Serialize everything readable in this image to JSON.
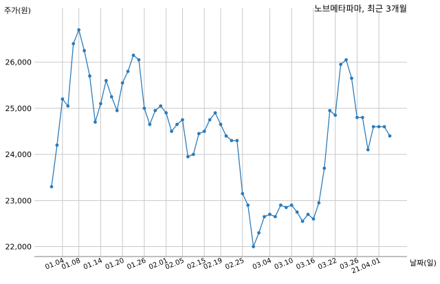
{
  "chart_data": {
    "type": "line",
    "title": "노브메타파마, 최근 3개월",
    "xlabel": "날짜(일)",
    "ylabel": "주가(원)",
    "ylim": [
      21800,
      27050
    ],
    "yticks": [
      22000,
      23000,
      24000,
      25000,
      26000
    ],
    "ytick_labels": [
      "22,000",
      "23,000",
      "24,000",
      "25,000",
      "26,000"
    ],
    "x_tick_labels": [
      "01.04",
      "01.08",
      "01.14",
      "01.20",
      "01.26",
      "02.01",
      "02.05",
      "02.15",
      "02.19",
      "02.25",
      "03.04",
      "03.10",
      "03.16",
      "03.22",
      "03.26",
      "21.04.01"
    ],
    "x_tick_index": [
      2,
      5,
      9,
      13,
      17,
      21,
      24,
      28,
      31,
      35,
      40,
      44,
      48,
      52,
      56,
      60
    ],
    "grid": true,
    "series_color": "#2b7bba",
    "series": [
      {
        "values": [
          23300,
          24200,
          25200,
          25050,
          26400,
          26700,
          26250,
          25700,
          24700,
          25100,
          25600,
          25250,
          24950,
          25550,
          25800,
          26150,
          26050,
          25000,
          24650,
          24950,
          25050,
          24900,
          24500,
          24650,
          24750,
          23950,
          24000,
          24450,
          24500,
          24750,
          24900,
          24650,
          24400,
          24300,
          24300,
          23150,
          22900,
          22000,
          22300,
          22650,
          22700,
          22650,
          22900,
          22850,
          22900,
          22750,
          22550,
          22700,
          22600,
          22950,
          23700,
          24950,
          24850,
          25950,
          26050,
          25650,
          24800,
          24800,
          24100,
          24600,
          24600,
          24600,
          24400
        ]
      }
    ]
  }
}
